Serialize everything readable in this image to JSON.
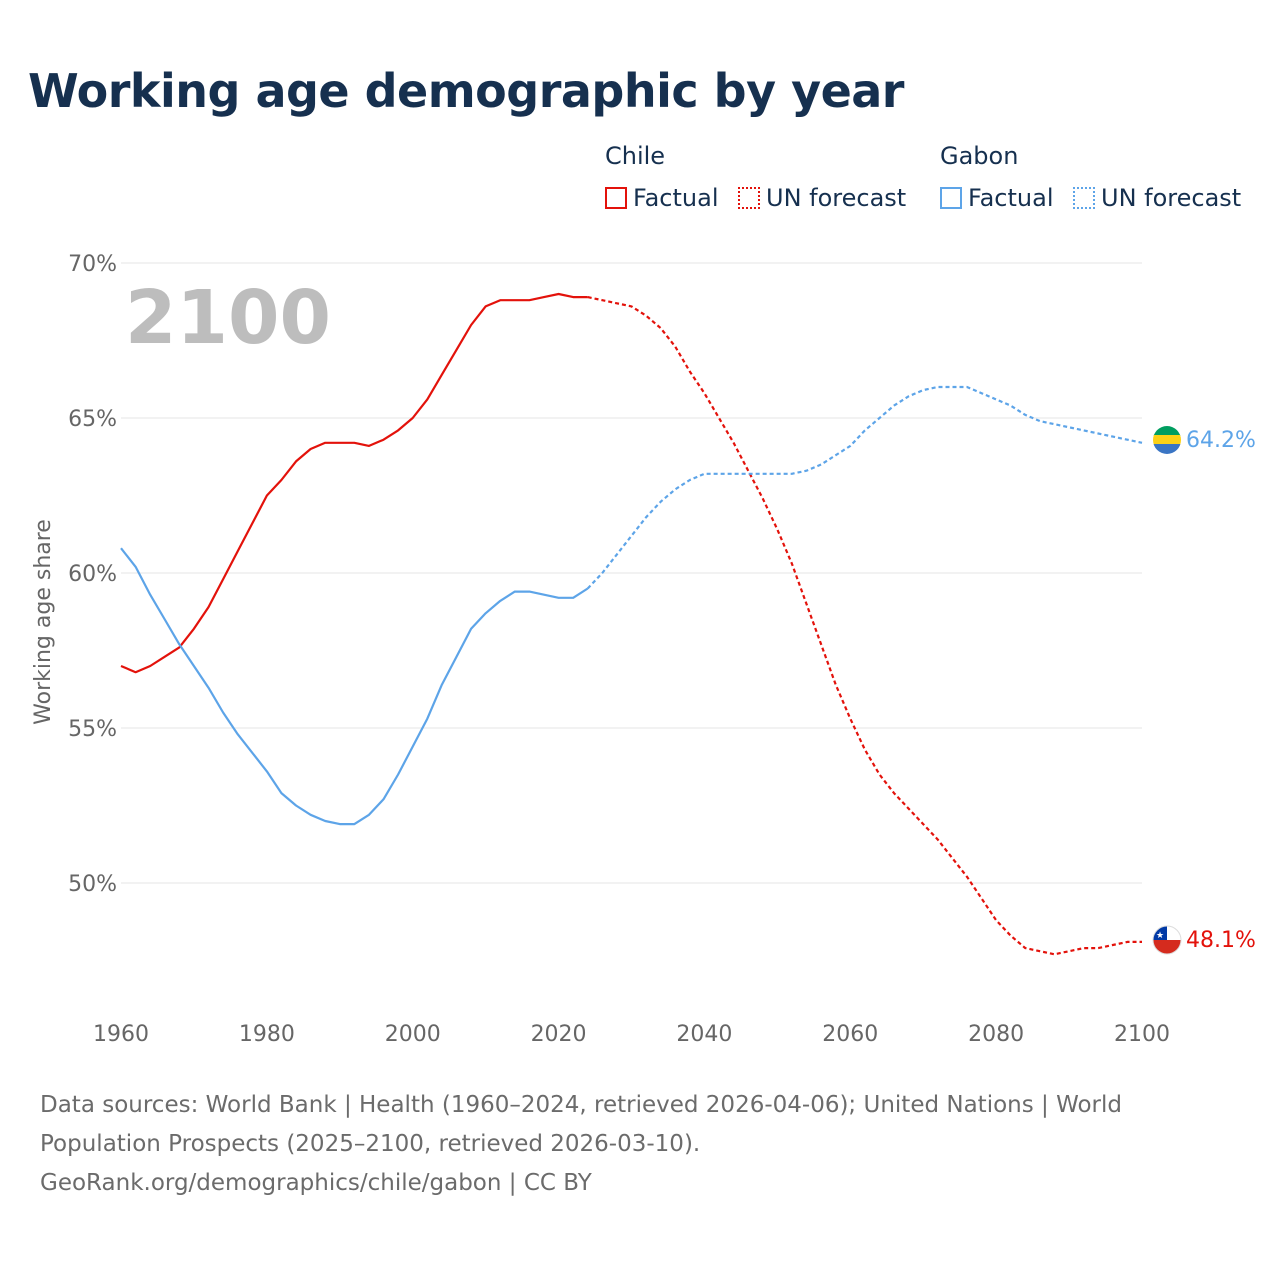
{
  "title": "Working age demographic by year",
  "legend": {
    "groups": [
      {
        "name": "Chile",
        "factual_label": "Factual",
        "forecast_label": "UN forecast",
        "color": "#e3120b"
      },
      {
        "name": "Gabon",
        "factual_label": "Factual",
        "forecast_label": "UN forecast",
        "color": "#5da4e8"
      }
    ]
  },
  "year_watermark": "2100",
  "end_labels": {
    "chile": "48.1%",
    "gabon": "64.2%"
  },
  "footer": {
    "line1": "Data sources: World Bank | Health (1960–2024, retrieved 2026-04-06); United Nations | World Population Prospects (2025–2100, retrieved 2026-03-10).",
    "line2": "GeoRank.org/demographics/chile/gabon | CC BY"
  },
  "chart_data": {
    "type": "line",
    "title": "Working age demographic by year",
    "xlabel": "",
    "ylabel": "Working age share",
    "xlim": [
      1960,
      2100
    ],
    "ylim": [
      46,
      70
    ],
    "x_ticks": [
      "1960",
      "1980",
      "2000",
      "2020",
      "2040",
      "2060",
      "2080",
      "2100"
    ],
    "y_ticks": [
      "50%",
      "55%",
      "60%",
      "65%",
      "70%"
    ],
    "y_tick_values": [
      50,
      55,
      60,
      65,
      70
    ],
    "x_tick_values": [
      1960,
      1980,
      2000,
      2020,
      2040,
      2060,
      2080,
      2100
    ],
    "forecast_start": 2024,
    "grid": true,
    "series": [
      {
        "name": "Chile",
        "color": "#e3120b",
        "points": [
          [
            1960,
            57.0
          ],
          [
            1962,
            56.8
          ],
          [
            1964,
            57.0
          ],
          [
            1966,
            57.3
          ],
          [
            1968,
            57.6
          ],
          [
            1970,
            58.2
          ],
          [
            1972,
            58.9
          ],
          [
            1974,
            59.8
          ],
          [
            1976,
            60.7
          ],
          [
            1978,
            61.6
          ],
          [
            1980,
            62.5
          ],
          [
            1982,
            63.0
          ],
          [
            1984,
            63.6
          ],
          [
            1986,
            64.0
          ],
          [
            1988,
            64.2
          ],
          [
            1990,
            64.2
          ],
          [
            1992,
            64.2
          ],
          [
            1994,
            64.1
          ],
          [
            1996,
            64.3
          ],
          [
            1998,
            64.6
          ],
          [
            2000,
            65.0
          ],
          [
            2002,
            65.6
          ],
          [
            2004,
            66.4
          ],
          [
            2006,
            67.2
          ],
          [
            2008,
            68.0
          ],
          [
            2010,
            68.6
          ],
          [
            2012,
            68.8
          ],
          [
            2014,
            68.8
          ],
          [
            2016,
            68.8
          ],
          [
            2018,
            68.9
          ],
          [
            2020,
            69.0
          ],
          [
            2022,
            68.9
          ],
          [
            2024,
            68.9
          ],
          [
            2026,
            68.8
          ],
          [
            2028,
            68.7
          ],
          [
            2030,
            68.6
          ],
          [
            2032,
            68.3
          ],
          [
            2034,
            67.9
          ],
          [
            2036,
            67.3
          ],
          [
            2038,
            66.5
          ],
          [
            2040,
            65.8
          ],
          [
            2042,
            65.0
          ],
          [
            2044,
            64.2
          ],
          [
            2046,
            63.3
          ],
          [
            2048,
            62.4
          ],
          [
            2050,
            61.4
          ],
          [
            2052,
            60.3
          ],
          [
            2054,
            59.0
          ],
          [
            2056,
            57.7
          ],
          [
            2058,
            56.4
          ],
          [
            2060,
            55.3
          ],
          [
            2062,
            54.3
          ],
          [
            2064,
            53.5
          ],
          [
            2066,
            52.9
          ],
          [
            2068,
            52.4
          ],
          [
            2070,
            51.9
          ],
          [
            2072,
            51.4
          ],
          [
            2074,
            50.8
          ],
          [
            2076,
            50.2
          ],
          [
            2078,
            49.5
          ],
          [
            2080,
            48.8
          ],
          [
            2082,
            48.3
          ],
          [
            2084,
            47.9
          ],
          [
            2086,
            47.8
          ],
          [
            2088,
            47.7
          ],
          [
            2090,
            47.8
          ],
          [
            2092,
            47.9
          ],
          [
            2094,
            47.9
          ],
          [
            2096,
            48.0
          ],
          [
            2098,
            48.1
          ],
          [
            2100,
            48.1
          ]
        ]
      },
      {
        "name": "Gabon",
        "color": "#5da4e8",
        "points": [
          [
            1960,
            60.8
          ],
          [
            1962,
            60.2
          ],
          [
            1964,
            59.3
          ],
          [
            1966,
            58.5
          ],
          [
            1968,
            57.7
          ],
          [
            1970,
            57.0
          ],
          [
            1972,
            56.3
          ],
          [
            1974,
            55.5
          ],
          [
            1976,
            54.8
          ],
          [
            1978,
            54.2
          ],
          [
            1980,
            53.6
          ],
          [
            1982,
            52.9
          ],
          [
            1984,
            52.5
          ],
          [
            1986,
            52.2
          ],
          [
            1988,
            52.0
          ],
          [
            1990,
            51.9
          ],
          [
            1992,
            51.9
          ],
          [
            1994,
            52.2
          ],
          [
            1996,
            52.7
          ],
          [
            1998,
            53.5
          ],
          [
            2000,
            54.4
          ],
          [
            2002,
            55.3
          ],
          [
            2004,
            56.4
          ],
          [
            2006,
            57.3
          ],
          [
            2008,
            58.2
          ],
          [
            2010,
            58.7
          ],
          [
            2012,
            59.1
          ],
          [
            2014,
            59.4
          ],
          [
            2016,
            59.4
          ],
          [
            2018,
            59.3
          ],
          [
            2020,
            59.2
          ],
          [
            2022,
            59.2
          ],
          [
            2024,
            59.5
          ],
          [
            2026,
            60.0
          ],
          [
            2028,
            60.6
          ],
          [
            2030,
            61.2
          ],
          [
            2032,
            61.8
          ],
          [
            2034,
            62.3
          ],
          [
            2036,
            62.7
          ],
          [
            2038,
            63.0
          ],
          [
            2040,
            63.2
          ],
          [
            2042,
            63.2
          ],
          [
            2044,
            63.2
          ],
          [
            2046,
            63.2
          ],
          [
            2048,
            63.2
          ],
          [
            2050,
            63.2
          ],
          [
            2052,
            63.2
          ],
          [
            2054,
            63.3
          ],
          [
            2056,
            63.5
          ],
          [
            2058,
            63.8
          ],
          [
            2060,
            64.1
          ],
          [
            2062,
            64.6
          ],
          [
            2064,
            65.0
          ],
          [
            2066,
            65.4
          ],
          [
            2068,
            65.7
          ],
          [
            2070,
            65.9
          ],
          [
            2072,
            66.0
          ],
          [
            2074,
            66.0
          ],
          [
            2076,
            66.0
          ],
          [
            2078,
            65.8
          ],
          [
            2080,
            65.6
          ],
          [
            2082,
            65.4
          ],
          [
            2084,
            65.1
          ],
          [
            2086,
            64.9
          ],
          [
            2088,
            64.8
          ],
          [
            2090,
            64.7
          ],
          [
            2092,
            64.6
          ],
          [
            2094,
            64.5
          ],
          [
            2096,
            64.4
          ],
          [
            2098,
            64.3
          ],
          [
            2100,
            64.2
          ]
        ]
      }
    ]
  }
}
